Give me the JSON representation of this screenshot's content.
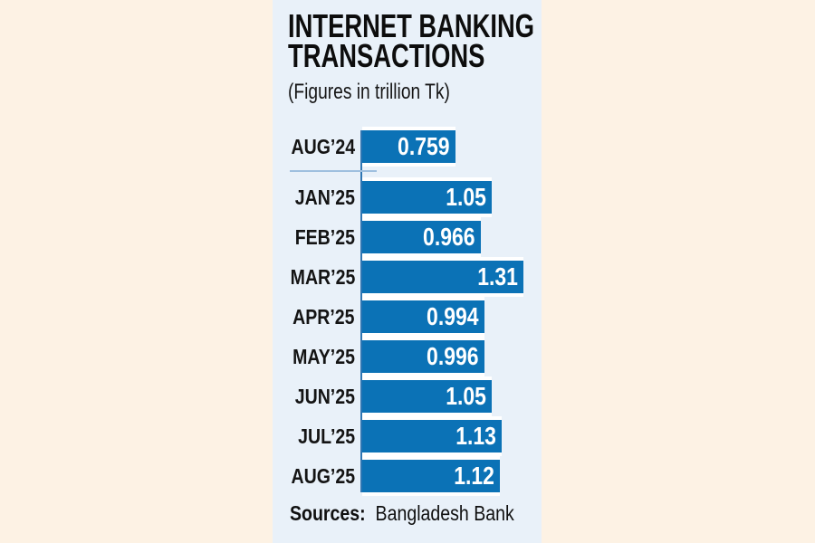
{
  "chart_data": {
    "type": "bar",
    "orientation": "horizontal",
    "title": "INTERNET BANKING\nTRANSACTIONS",
    "subtitle": "(Figures in trillion Tk)",
    "categories": [
      "AUG’24",
      "JAN’25",
      "FEB’25",
      "MAR’25",
      "APR’25",
      "MAY’25",
      "JUN’25",
      "JUL’25",
      "AUG’25"
    ],
    "values": [
      0.759,
      1.05,
      0.966,
      1.31,
      0.994,
      0.996,
      1.05,
      1.13,
      1.12
    ],
    "value_labels": [
      "0.759",
      "1.05",
      "0.966",
      "1.31",
      "0.994",
      "0.996",
      "1.05",
      "1.13",
      "1.12"
    ],
    "xlim": [
      0,
      1.31
    ],
    "separator_after_index": 0,
    "legend": "none",
    "grid": "off",
    "source_label": "Sources:",
    "source_value": "Bangladesh Bank",
    "colors": {
      "background": "#fdf2e4",
      "panel": "#e9f1f9",
      "bar": "#0b72b6",
      "axis_line": "#2f76b3",
      "break_line": "#9fc0df",
      "label_text": "#141414",
      "value_text": "#ffffff"
    }
  }
}
